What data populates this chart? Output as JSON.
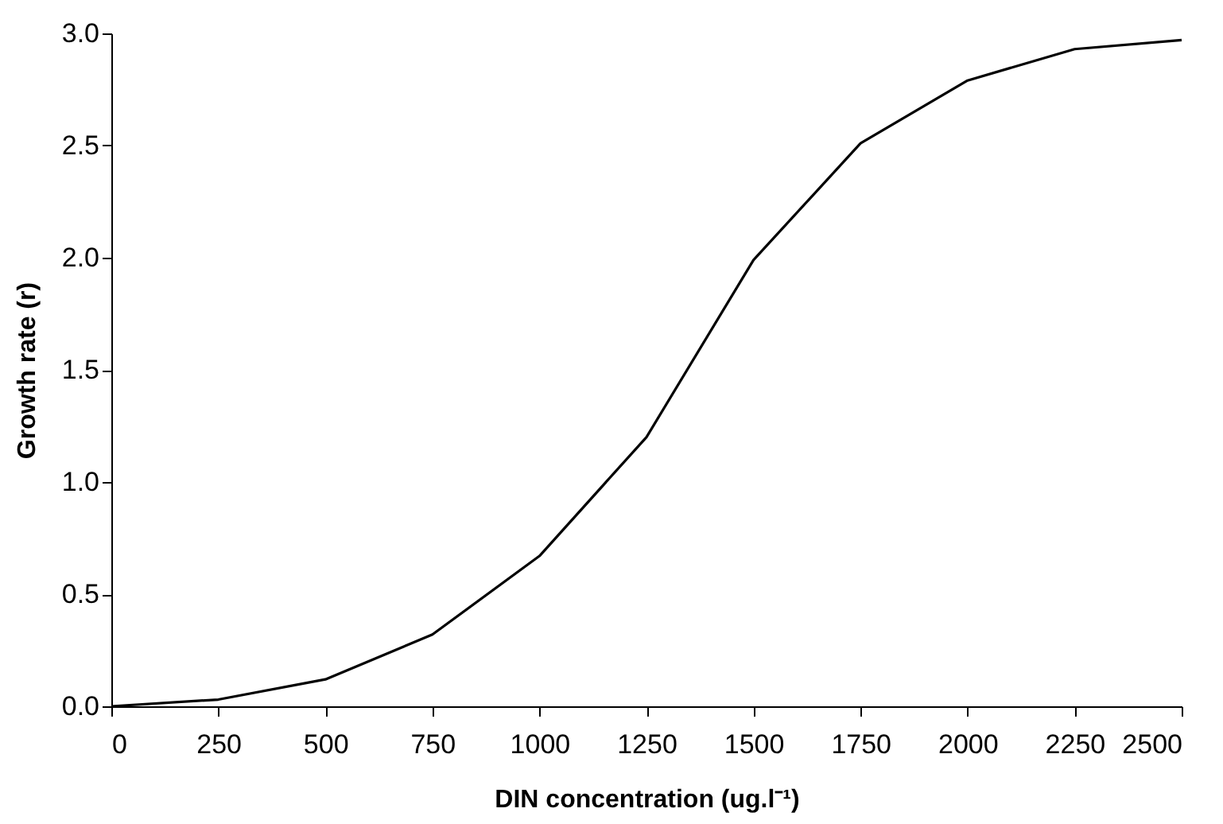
{
  "chart_data": {
    "type": "line",
    "xlabel": "DIN concentration (ug.l⁻¹)",
    "ylabel": "Growth rate (r)",
    "x": [
      0,
      250,
      500,
      750,
      1000,
      1250,
      1500,
      1750,
      2000,
      2250,
      2500
    ],
    "series": [
      {
        "color": "#000000",
        "values": [
          0,
          0.03,
          0.12,
          0.32,
          0.67,
          1.2,
          1.99,
          2.51,
          2.79,
          2.93,
          2.97
        ]
      }
    ],
    "xlim": [
      0,
      2500
    ],
    "xticks": [
      0,
      250,
      500,
      750,
      1000,
      1250,
      1500,
      1750,
      2000,
      2250,
      2500
    ],
    "ylim": [
      0,
      3.0
    ],
    "yticks": [
      {
        "value": 0,
        "label": "0.0"
      },
      {
        "value": 0.5,
        "label": "0.5"
      },
      {
        "value": 1.0,
        "label": "1.0"
      },
      {
        "value": 1.5,
        "label": "1.5"
      },
      {
        "value": 2.0,
        "label": "2.0"
      },
      {
        "value": 2.5,
        "label": "2.5"
      },
      {
        "value": 3.0,
        "label": "3.0"
      }
    ],
    "grid": false,
    "marker": "none",
    "line_style": "solid"
  }
}
